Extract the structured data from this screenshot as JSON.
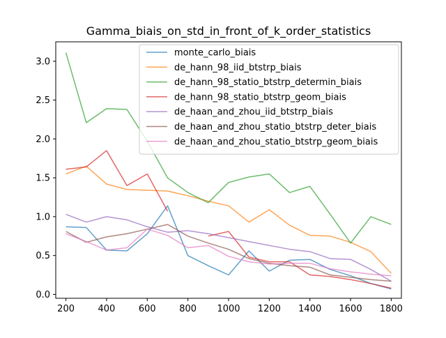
{
  "chart_data": {
    "type": "line",
    "title": "Gamma_biais_on_std_in_front_of_k_order_statistics",
    "xlabel": "",
    "ylabel": "",
    "xlim": [
      150,
      1850
    ],
    "ylim": [
      -0.05,
      3.25
    ],
    "xticks": [
      200,
      400,
      600,
      800,
      1000,
      1200,
      1400,
      1600,
      1800
    ],
    "yticks": [
      0.0,
      0.5,
      1.0,
      1.5,
      2.0,
      2.5,
      3.0
    ],
    "legend_position": "upper-center",
    "grid": false,
    "series": [
      {
        "name": "monte_carlo_biais",
        "color": "#1f77b4",
        "points": [
          [
            200,
            0.87
          ],
          [
            300,
            0.86
          ],
          [
            400,
            0.57
          ],
          [
            500,
            0.56
          ],
          [
            600,
            0.78
          ],
          [
            700,
            1.14
          ],
          [
            800,
            0.5
          ],
          [
            900,
            0.37
          ],
          [
            1000,
            0.25
          ],
          [
            1100,
            0.56
          ],
          [
            1200,
            0.3
          ],
          [
            1300,
            0.44
          ],
          [
            1400,
            0.45
          ],
          [
            1500,
            0.32
          ],
          [
            1600,
            0.24
          ],
          [
            1700,
            0.14
          ],
          [
            1800,
            0.07
          ]
        ]
      },
      {
        "name": "de_hann_98_iid_btstrp_biais",
        "color": "#ff7f0e",
        "points": [
          [
            200,
            1.55
          ],
          [
            300,
            1.65
          ],
          [
            400,
            1.42
          ],
          [
            500,
            1.35
          ],
          [
            600,
            1.34
          ],
          [
            700,
            1.33
          ],
          [
            800,
            1.27
          ],
          [
            900,
            1.2
          ],
          [
            1000,
            1.14
          ],
          [
            1100,
            0.93
          ],
          [
            1200,
            1.09
          ],
          [
            1300,
            0.89
          ],
          [
            1400,
            0.76
          ],
          [
            1500,
            0.75
          ],
          [
            1600,
            0.67
          ],
          [
            1700,
            0.55
          ],
          [
            1800,
            0.27
          ]
        ]
      },
      {
        "name": "de_hann_98_statio_btstrp_determin_biais",
        "color": "#2ca02c",
        "points": [
          [
            200,
            3.11
          ],
          [
            300,
            2.21
          ],
          [
            400,
            2.39
          ],
          [
            500,
            2.38
          ],
          [
            600,
            1.97
          ],
          [
            700,
            1.5
          ],
          [
            800,
            1.31
          ],
          [
            900,
            1.18
          ],
          [
            1000,
            1.44
          ],
          [
            1100,
            1.51
          ],
          [
            1200,
            1.55
          ],
          [
            1300,
            1.31
          ],
          [
            1400,
            1.39
          ],
          [
            1500,
            1.03
          ],
          [
            1600,
            0.66
          ],
          [
            1700,
            1.0
          ],
          [
            1800,
            0.9
          ]
        ]
      },
      {
        "name": "de_hann_98_statio_btstrp_geom_biais",
        "color": "#d62728",
        "points": [
          [
            200,
            1.61
          ],
          [
            300,
            1.64
          ],
          [
            400,
            1.85
          ],
          [
            500,
            1.4
          ],
          [
            600,
            1.55
          ],
          [
            700,
            1.07
          ],
          [
            null,
            null
          ],
          [
            900,
            0.75
          ],
          [
            1000,
            0.81
          ],
          [
            1100,
            0.48
          ],
          [
            1200,
            0.42
          ],
          [
            1300,
            0.42
          ],
          [
            1400,
            0.25
          ],
          [
            1500,
            0.23
          ],
          [
            1600,
            0.19
          ],
          [
            1700,
            0.14
          ],
          [
            1800,
            0.08
          ]
        ]
      },
      {
        "name": "de_haan_and_zhou_iid_btstrp_biais",
        "color": "#9467bd",
        "points": [
          [
            200,
            1.03
          ],
          [
            300,
            0.93
          ],
          [
            400,
            1.0
          ],
          [
            500,
            0.96
          ],
          [
            600,
            0.87
          ],
          [
            700,
            0.8
          ],
          [
            800,
            0.82
          ],
          [
            900,
            0.78
          ],
          [
            1000,
            0.73
          ],
          [
            1100,
            0.68
          ],
          [
            1200,
            0.63
          ],
          [
            1300,
            0.58
          ],
          [
            1400,
            0.55
          ],
          [
            1500,
            0.46
          ],
          [
            1600,
            0.45
          ],
          [
            1700,
            0.32
          ],
          [
            1800,
            0.17
          ]
        ]
      },
      {
        "name": "de_haan_and_zhou_statio_btstrp_deter_biais",
        "color": "#8c564b",
        "points": [
          [
            200,
            0.81
          ],
          [
            300,
            0.67
          ],
          [
            400,
            0.74
          ],
          [
            500,
            0.78
          ],
          [
            600,
            0.84
          ],
          [
            700,
            0.9
          ],
          [
            800,
            0.75
          ],
          [
            900,
            0.66
          ],
          [
            1000,
            0.58
          ],
          [
            1100,
            0.46
          ],
          [
            1200,
            0.4
          ],
          [
            1300,
            0.37
          ],
          [
            1400,
            0.35
          ],
          [
            1500,
            0.25
          ],
          [
            1600,
            0.22
          ],
          [
            1700,
            0.19
          ],
          [
            1800,
            0.17
          ]
        ]
      },
      {
        "name": "de_haan_and_zhou_statio_btstrp_geom_biais",
        "color": "#e377c2",
        "points": [
          [
            200,
            0.78
          ],
          [
            300,
            0.68
          ],
          [
            400,
            0.57
          ],
          [
            500,
            0.6
          ],
          [
            600,
            0.84
          ],
          [
            700,
            0.76
          ],
          [
            800,
            0.6
          ],
          [
            900,
            0.63
          ],
          [
            1000,
            0.49
          ],
          [
            1100,
            0.42
          ],
          [
            1200,
            0.39
          ],
          [
            1300,
            0.4
          ],
          [
            1400,
            0.4
          ],
          [
            1500,
            0.33
          ],
          [
            1600,
            0.29
          ],
          [
            1700,
            0.26
          ],
          [
            1800,
            0.24
          ]
        ]
      }
    ]
  }
}
